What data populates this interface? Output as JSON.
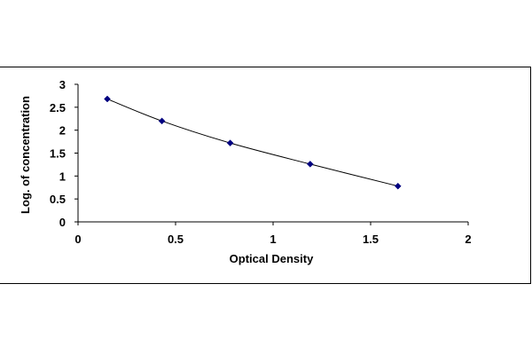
{
  "chart_data": {
    "type": "line",
    "title": "",
    "xlabel": "Optical Density",
    "ylabel": "Log. of concentration",
    "xlim": [
      0,
      2
    ],
    "ylim": [
      0,
      3
    ],
    "x_ticks": [
      "0",
      "0.5",
      "1",
      "1.5",
      "2"
    ],
    "y_ticks": [
      "0",
      "0.5",
      "1",
      "1.5",
      "2",
      "2.5",
      "3"
    ],
    "grid": false,
    "legend": "none",
    "series": [
      {
        "color": "#000080",
        "marker": "diamond",
        "points": [
          {
            "x": 0.15,
            "y": 2.68
          },
          {
            "x": 0.43,
            "y": 2.2
          },
          {
            "x": 0.78,
            "y": 1.72
          },
          {
            "x": 1.19,
            "y": 1.26
          },
          {
            "x": 1.64,
            "y": 0.78
          }
        ]
      }
    ]
  }
}
